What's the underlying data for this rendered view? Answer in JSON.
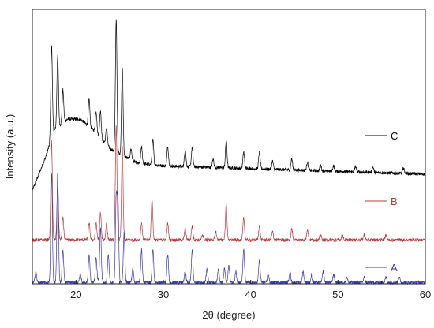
{
  "chart_data": {
    "type": "line",
    "title": "",
    "xlabel": "2θ (degree)",
    "ylabel": "Intensity (a.u.)",
    "xlim": [
      15,
      60
    ],
    "x_ticks": [
      "20",
      "30",
      "40",
      "50",
      "60"
    ],
    "grid": false,
    "y_ticks_shown": false,
    "series": [
      {
        "name": "C",
        "color": "#000000",
        "baseline": [
          [
            15,
            0.34
          ],
          [
            16.5,
            0.46
          ],
          [
            17.5,
            0.56
          ],
          [
            19,
            0.6
          ],
          [
            20.5,
            0.6
          ],
          [
            22,
            0.56
          ],
          [
            24,
            0.49
          ],
          [
            27,
            0.44
          ],
          [
            30,
            0.43
          ],
          [
            40,
            0.42
          ],
          [
            50,
            0.41
          ],
          [
            60,
            0.4
          ]
        ],
        "peaks": [
          [
            17.2,
            0.34
          ],
          [
            17.9,
            0.26
          ],
          [
            18.5,
            0.12
          ],
          [
            21.5,
            0.1
          ],
          [
            22.3,
            0.08
          ],
          [
            22.8,
            0.1
          ],
          [
            23.5,
            0.06
          ],
          [
            24.6,
            0.48
          ],
          [
            25.3,
            0.32
          ],
          [
            26.3,
            0.04
          ],
          [
            27.5,
            0.06
          ],
          [
            28.8,
            0.09
          ],
          [
            30.5,
            0.07
          ],
          [
            32.5,
            0.06
          ],
          [
            33.3,
            0.07
          ],
          [
            35.7,
            0.03
          ],
          [
            37.2,
            0.1
          ],
          [
            39.2,
            0.06
          ],
          [
            41.0,
            0.06
          ],
          [
            42.5,
            0.03
          ],
          [
            44.7,
            0.04
          ],
          [
            46.5,
            0.03
          ],
          [
            48.0,
            0.02
          ],
          [
            49.5,
            0.02
          ],
          [
            52.0,
            0.02
          ],
          [
            54.0,
            0.02
          ],
          [
            57.5,
            0.02
          ]
        ]
      },
      {
        "name": "B",
        "color": "#b43c3c",
        "baseline": [
          [
            15,
            0.16
          ],
          [
            60,
            0.16
          ]
        ],
        "peaks": [
          [
            17.2,
            0.36
          ],
          [
            17.9,
            0.2
          ],
          [
            18.5,
            0.08
          ],
          [
            21.5,
            0.06
          ],
          [
            22.3,
            0.06
          ],
          [
            22.8,
            0.1
          ],
          [
            23.5,
            0.06
          ],
          [
            24.6,
            0.42
          ],
          [
            25.3,
            0.34
          ],
          [
            27.5,
            0.06
          ],
          [
            28.7,
            0.15
          ],
          [
            30.5,
            0.06
          ],
          [
            32.5,
            0.04
          ],
          [
            33.3,
            0.05
          ],
          [
            34.5,
            0.02
          ],
          [
            36.0,
            0.03
          ],
          [
            37.2,
            0.13
          ],
          [
            39.2,
            0.08
          ],
          [
            41.0,
            0.05
          ],
          [
            42.5,
            0.03
          ],
          [
            44.7,
            0.04
          ],
          [
            46.5,
            0.04
          ],
          [
            48.0,
            0.02
          ],
          [
            50.5,
            0.02
          ],
          [
            53.0,
            0.02
          ],
          [
            55.5,
            0.02
          ]
        ]
      },
      {
        "name": "A",
        "color": "#3a3aa8",
        "baseline": [
          [
            15,
            0.005
          ],
          [
            60,
            0.005
          ]
        ],
        "peaks": [
          [
            15.4,
            0.04
          ],
          [
            17.2,
            0.4
          ],
          [
            17.9,
            0.4
          ],
          [
            18.5,
            0.12
          ],
          [
            20.5,
            0.03
          ],
          [
            21.5,
            0.1
          ],
          [
            22.3,
            0.09
          ],
          [
            22.8,
            0.2
          ],
          [
            23.7,
            0.1
          ],
          [
            24.6,
            0.3
          ],
          [
            24.8,
            0.3
          ],
          [
            25.5,
            0.18
          ],
          [
            26.5,
            0.05
          ],
          [
            27.5,
            0.12
          ],
          [
            28.8,
            0.12
          ],
          [
            30.5,
            0.1
          ],
          [
            32.5,
            0.04
          ],
          [
            33.3,
            0.12
          ],
          [
            35.0,
            0.05
          ],
          [
            36.3,
            0.05
          ],
          [
            37.0,
            0.05
          ],
          [
            37.5,
            0.06
          ],
          [
            38.3,
            0.04
          ],
          [
            39.2,
            0.12
          ],
          [
            41.0,
            0.08
          ],
          [
            42.0,
            0.03
          ],
          [
            44.5,
            0.04
          ],
          [
            46.0,
            0.04
          ],
          [
            47.0,
            0.03
          ],
          [
            48.3,
            0.04
          ],
          [
            49.5,
            0.03
          ],
          [
            51.0,
            0.02
          ],
          [
            53.0,
            0.02
          ],
          [
            55.5,
            0.02
          ],
          [
            57.0,
            0.02
          ]
        ]
      }
    ]
  }
}
